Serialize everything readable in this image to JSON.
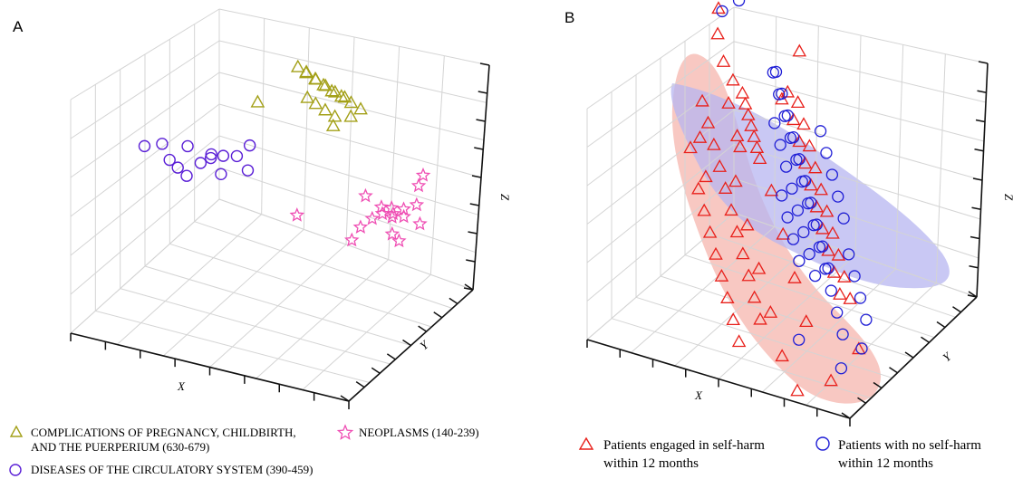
{
  "figure": {
    "panel_a_letter": "A",
    "panel_b_letter": "B",
    "colors": {
      "pregnancy": "#a3a018",
      "circulatory": "#5a1fd6",
      "neoplasms": "#ef4fb4",
      "self_harm": "#e8201b",
      "no_self_harm": "#1f1ed6",
      "self_harm_region": "#f6b6ad",
      "no_self_harm_region": "#b7b6f0",
      "grid": "#d4d4d4"
    }
  },
  "chart_data": [
    {
      "panel": "A",
      "type": "scatter",
      "dimensions": 3,
      "xlabel": "X",
      "ylabel": "Y",
      "zlabel": "Z",
      "tick_labels_shown": false,
      "grid": true,
      "legend_position": "bottom",
      "series": [
        {
          "name": "COMPLICATIONS OF PREGNANCY, CHILDBIRTH, AND THE PUERPERIUM (630-679)",
          "marker": "triangle",
          "points": [
            [
              -0.05,
              0.28,
              0.82
            ],
            [
              0.02,
              0.26,
              0.8
            ],
            [
              0.1,
              0.24,
              0.78
            ],
            [
              0.18,
              0.22,
              0.76
            ],
            [
              0.26,
              0.2,
              0.74
            ],
            [
              0.34,
              0.18,
              0.73
            ],
            [
              0.0,
              0.3,
              0.78
            ],
            [
              0.08,
              0.27,
              0.76
            ],
            [
              0.15,
              0.25,
              0.74
            ],
            [
              0.22,
              0.23,
              0.72
            ],
            [
              0.3,
              0.21,
              0.71
            ],
            [
              0.38,
              0.19,
              0.69
            ],
            [
              0.46,
              0.17,
              0.67
            ],
            [
              0.05,
              0.22,
              0.62
            ],
            [
              0.12,
              0.2,
              0.6
            ],
            [
              0.2,
              0.18,
              0.58
            ],
            [
              0.28,
              0.16,
              0.56
            ],
            [
              -0.35,
              0.3,
              0.42
            ],
            [
              0.4,
              0.15,
              0.6
            ],
            [
              0.3,
              0.1,
              0.52
            ]
          ]
        },
        {
          "name": "DISEASES OF THE CIRCULATORY SYSTEM (390-459)",
          "marker": "circle",
          "points": [
            [
              -0.95,
              -0.1,
              0.1
            ],
            [
              -0.85,
              -0.05,
              0.12
            ],
            [
              -0.78,
              -0.08,
              0.02
            ],
            [
              -0.7,
              -0.12,
              0.0
            ],
            [
              -0.72,
              0.05,
              0.08
            ],
            [
              -0.6,
              0.0,
              0.0
            ],
            [
              -0.55,
              0.05,
              0.06
            ],
            [
              -0.5,
              -0.05,
              0.1
            ],
            [
              -0.62,
              -0.15,
              -0.03
            ],
            [
              -0.48,
              0.08,
              0.05
            ],
            [
              -0.4,
              -0.1,
              0.02
            ],
            [
              -0.35,
              0.02,
              0.12
            ],
            [
              -0.3,
              0.1,
              0.18
            ],
            [
              -0.25,
              -0.02,
              0.05
            ]
          ]
        },
        {
          "name": "NEOPLASMS (140-239)",
          "marker": "star",
          "points": [
            [
              0.7,
              0.0,
              0.0
            ],
            [
              0.75,
              0.05,
              -0.1
            ],
            [
              0.8,
              -0.05,
              0.05
            ],
            [
              0.85,
              0.02,
              -0.05
            ],
            [
              0.9,
              0.1,
              0.02
            ],
            [
              0.72,
              0.12,
              -0.12
            ],
            [
              0.78,
              0.15,
              -0.08
            ],
            [
              0.82,
              -0.08,
              -0.15
            ],
            [
              0.88,
              -0.1,
              -0.18
            ],
            [
              0.95,
              0.05,
              -0.1
            ],
            [
              0.65,
              -0.12,
              0.15
            ],
            [
              0.6,
              0.2,
              -0.2
            ],
            [
              0.5,
              0.25,
              -0.3
            ],
            [
              0.4,
              0.28,
              -0.42
            ],
            [
              0.3,
              0.35,
              -0.6
            ],
            [
              0.92,
              0.15,
              0.25
            ],
            [
              0.85,
              0.22,
              0.1
            ],
            [
              0.2,
              -0.2,
              -0.1
            ]
          ]
        }
      ]
    },
    {
      "panel": "B",
      "type": "scatter",
      "dimensions": 3,
      "xlabel": "X",
      "ylabel": "Y",
      "zlabel": "Z",
      "tick_labels_shown": false,
      "grid": true,
      "legend_position": "bottom",
      "series": [
        {
          "name": "Patients engaged in self-harm within 12 months",
          "marker": "triangle",
          "points": [
            [
              -0.9,
              0.6,
              0.8
            ],
            [
              -0.8,
              0.5,
              0.65
            ],
            [
              -0.7,
              0.45,
              0.55
            ],
            [
              -0.6,
              0.4,
              0.5
            ],
            [
              -0.55,
              0.35,
              0.45
            ],
            [
              -0.5,
              0.3,
              0.4
            ],
            [
              -0.45,
              0.25,
              0.35
            ],
            [
              -0.4,
              0.2,
              0.3
            ],
            [
              -0.35,
              0.15,
              0.25
            ],
            [
              -0.3,
              0.1,
              0.2
            ],
            [
              -0.85,
              0.3,
              0.4
            ],
            [
              -0.75,
              0.2,
              0.3
            ],
            [
              -0.65,
              0.1,
              0.2
            ],
            [
              -0.55,
              0.0,
              0.1
            ],
            [
              -0.45,
              -0.1,
              0.0
            ],
            [
              -0.35,
              -0.2,
              -0.1
            ],
            [
              -0.25,
              -0.3,
              -0.2
            ],
            [
              -0.15,
              -0.4,
              -0.3
            ],
            [
              -0.05,
              -0.5,
              -0.4
            ],
            [
              0.05,
              -0.6,
              -0.5
            ],
            [
              0.15,
              -0.7,
              -0.6
            ],
            [
              -0.6,
              -0.2,
              0.0
            ],
            [
              -0.5,
              -0.3,
              -0.1
            ],
            [
              -0.4,
              -0.4,
              -0.2
            ],
            [
              -0.3,
              -0.5,
              -0.3
            ],
            [
              -0.2,
              -0.6,
              -0.4
            ],
            [
              -0.1,
              -0.7,
              -0.5
            ],
            [
              0.0,
              -0.8,
              -0.6
            ],
            [
              0.1,
              -0.9,
              -0.7
            ],
            [
              -0.7,
              0.0,
              0.3
            ],
            [
              -0.2,
              0.3,
              0.7
            ],
            [
              -0.1,
              0.2,
              0.55
            ],
            [
              0.0,
              0.1,
              0.45
            ],
            [
              0.1,
              0.0,
              0.35
            ],
            [
              0.2,
              -0.1,
              0.25
            ],
            [
              0.3,
              -0.2,
              0.15
            ],
            [
              0.4,
              -0.3,
              0.05
            ],
            [
              0.5,
              -0.4,
              -0.05
            ],
            [
              0.6,
              -0.5,
              -0.15
            ],
            [
              0.7,
              -0.6,
              -0.25
            ],
            [
              -0.15,
              0.35,
              0.6
            ],
            [
              -0.05,
              0.25,
              0.5
            ],
            [
              0.05,
              0.15,
              0.4
            ],
            [
              0.15,
              0.05,
              0.3
            ],
            [
              0.25,
              -0.05,
              0.2
            ],
            [
              0.35,
              -0.15,
              0.1
            ],
            [
              0.45,
              -0.25,
              0.0
            ],
            [
              0.55,
              -0.35,
              -0.1
            ],
            [
              0.65,
              -0.45,
              -0.2
            ],
            [
              0.75,
              -0.55,
              -0.3
            ],
            [
              -0.95,
              0.7,
              0.95
            ],
            [
              -0.25,
              0.55,
              0.9
            ],
            [
              -0.45,
              0.1,
              0.25
            ],
            [
              -0.4,
              -0.05,
              0.05
            ],
            [
              -0.2,
              -0.25,
              -0.15
            ],
            [
              0.0,
              -0.45,
              -0.35
            ],
            [
              0.2,
              -0.65,
              -0.55
            ],
            [
              0.4,
              -0.85,
              -0.75
            ],
            [
              0.6,
              -1.0,
              -0.9
            ],
            [
              0.8,
              -0.9,
              -0.8
            ],
            [
              -0.3,
              0.4,
              0.55
            ],
            [
              -0.1,
              -0.1,
              0.1
            ],
            [
              0.1,
              -0.3,
              -0.1
            ],
            [
              0.3,
              -0.5,
              -0.3
            ],
            [
              -0.5,
              0.15,
              0.3
            ],
            [
              -0.65,
              0.3,
              0.45
            ],
            [
              -0.8,
              0.05,
              0.15
            ],
            [
              -0.6,
              -0.1,
              0.05
            ],
            [
              0.5,
              -0.7,
              -0.5
            ],
            [
              0.9,
              -0.7,
              -0.6
            ]
          ]
        },
        {
          "name": "Patients with no self-harm within 12 months",
          "marker": "circle",
          "points": [
            [
              -0.85,
              0.8,
              1.0
            ],
            [
              -0.95,
              0.75,
              0.9
            ],
            [
              -0.4,
              0.5,
              0.7
            ],
            [
              -0.3,
              0.4,
              0.6
            ],
            [
              -0.2,
              0.3,
              0.5
            ],
            [
              -0.1,
              0.2,
              0.4
            ],
            [
              0.0,
              0.1,
              0.3
            ],
            [
              0.1,
              0.0,
              0.2
            ],
            [
              0.2,
              -0.1,
              0.1
            ],
            [
              0.3,
              -0.2,
              0.0
            ],
            [
              0.4,
              -0.3,
              -0.1
            ],
            [
              0.5,
              -0.4,
              -0.2
            ],
            [
              -0.35,
              0.45,
              0.55
            ],
            [
              -0.25,
              0.35,
              0.45
            ],
            [
              -0.15,
              0.25,
              0.35
            ],
            [
              -0.05,
              0.15,
              0.25
            ],
            [
              0.05,
              0.05,
              0.15
            ],
            [
              0.15,
              -0.05,
              0.05
            ],
            [
              0.25,
              -0.15,
              -0.05
            ],
            [
              0.35,
              -0.25,
              -0.15
            ],
            [
              0.45,
              -0.35,
              -0.25
            ],
            [
              0.55,
              -0.45,
              -0.35
            ],
            [
              0.65,
              -0.55,
              -0.45
            ],
            [
              0.75,
              -0.65,
              -0.55
            ],
            [
              -0.3,
              0.3,
              0.4
            ],
            [
              -0.2,
              0.2,
              0.3
            ],
            [
              -0.1,
              0.1,
              0.2
            ],
            [
              0.0,
              0.0,
              0.1
            ],
            [
              0.1,
              -0.1,
              0.0
            ],
            [
              0.2,
              -0.2,
              -0.1
            ],
            [
              0.3,
              -0.3,
              -0.2
            ],
            [
              0.4,
              -0.4,
              -0.3
            ],
            [
              0.6,
              -0.3,
              -0.1
            ],
            [
              0.7,
              -0.4,
              -0.2
            ],
            [
              0.8,
              -0.5,
              -0.3
            ],
            [
              0.9,
              -0.6,
              -0.4
            ],
            [
              -0.45,
              0.55,
              0.65
            ],
            [
              0.05,
              0.3,
              0.45
            ],
            [
              0.15,
              0.2,
              0.35
            ],
            [
              0.25,
              0.1,
              0.25
            ],
            [
              0.35,
              0.0,
              0.15
            ],
            [
              0.45,
              -0.1,
              0.05
            ],
            [
              -0.05,
              -0.05,
              0.05
            ],
            [
              0.05,
              -0.15,
              -0.05
            ],
            [
              0.15,
              -0.25,
              -0.15
            ],
            [
              0.25,
              -0.35,
              -0.25
            ],
            [
              0.5,
              -0.8,
              -0.6
            ],
            [
              0.95,
              -0.75,
              -0.55
            ],
            [
              0.85,
              -0.85,
              -0.7
            ]
          ]
        }
      ]
    }
  ],
  "legends": {
    "a": {
      "pregnancy_line1": "COMPLICATIONS OF PREGNANCY, CHILDBIRTH,",
      "pregnancy_line2": "AND THE PUERPERIUM (630-679)",
      "neoplasms": "NEOPLASMS (140-239)",
      "circulatory": "DISEASES OF THE CIRCULATORY SYSTEM (390-459)"
    },
    "b": {
      "self_harm_line1": "Patients engaged in self-harm",
      "self_harm_line2": "within 12 months",
      "no_self_harm_line1": "Patients with no self-harm",
      "no_self_harm_line2": "within 12 months"
    }
  },
  "icons": {
    "triangle": "triangle-marker-icon",
    "circle": "circle-marker-icon",
    "star": "star-marker-icon"
  }
}
